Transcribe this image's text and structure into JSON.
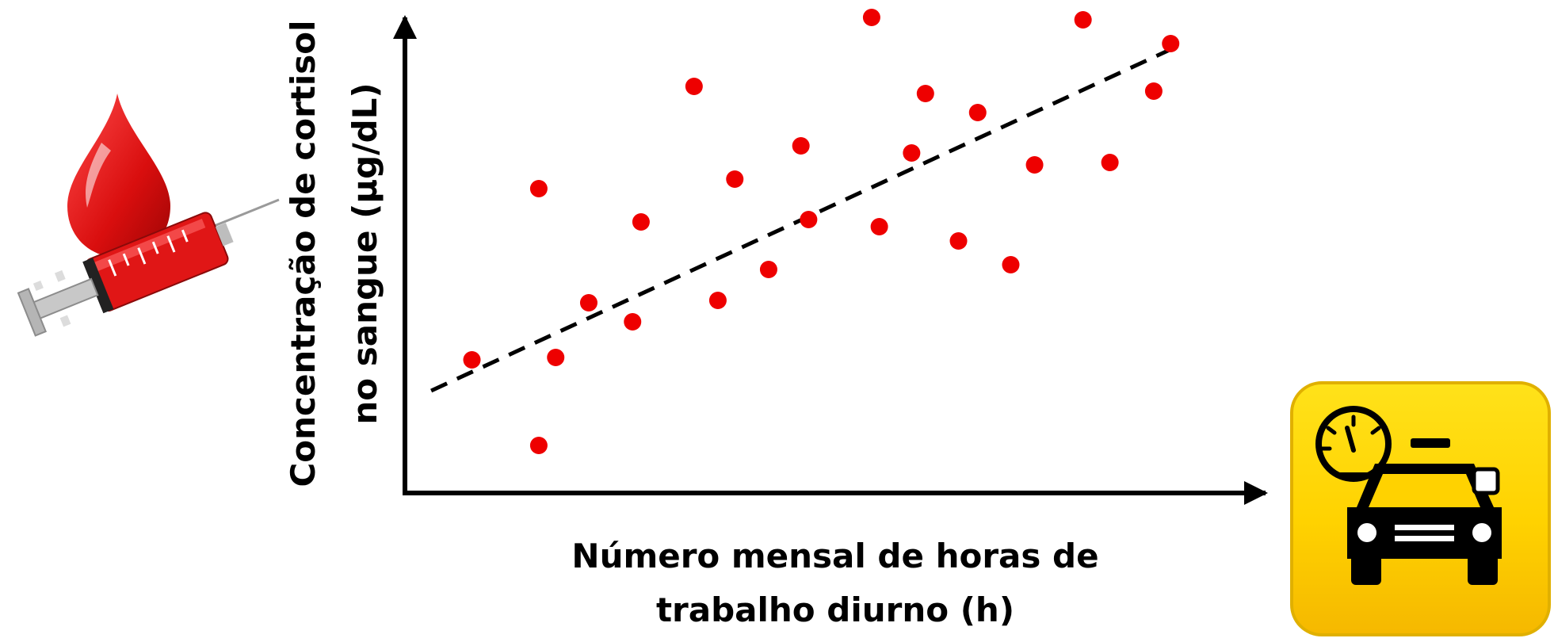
{
  "chart_data": {
    "type": "scatter",
    "xlabel_line1": "Número mensal de horas de",
    "xlabel_line2": "trabalho diurno (h)",
    "ylabel_line1": "Concentração de cortisol",
    "ylabel_line2": "no sangue (µg/dL)",
    "grid": false,
    "legend": "none",
    "xlim": [
      0,
      100
    ],
    "ylim": [
      0,
      100
    ],
    "points": [
      {
        "x": 8.3,
        "y": 26.0
      },
      {
        "x": 17.0,
        "y": 8.0
      },
      {
        "x": 17.0,
        "y": 62.0
      },
      {
        "x": 19.2,
        "y": 26.5
      },
      {
        "x": 23.5,
        "y": 38.0
      },
      {
        "x": 30.3,
        "y": 55.0
      },
      {
        "x": 29.2,
        "y": 34.0
      },
      {
        "x": 37.2,
        "y": 83.5
      },
      {
        "x": 40.3,
        "y": 38.5
      },
      {
        "x": 42.5,
        "y": 64.0
      },
      {
        "x": 46.9,
        "y": 45.0
      },
      {
        "x": 51.1,
        "y": 71.0
      },
      {
        "x": 52.1,
        "y": 55.5
      },
      {
        "x": 60.3,
        "y": 98.0
      },
      {
        "x": 61.3,
        "y": 54.0
      },
      {
        "x": 65.5,
        "y": 69.5
      },
      {
        "x": 67.3,
        "y": 82.0
      },
      {
        "x": 71.6,
        "y": 51.0
      },
      {
        "x": 74.1,
        "y": 78.0
      },
      {
        "x": 78.4,
        "y": 46.0
      },
      {
        "x": 81.5,
        "y": 67.0
      },
      {
        "x": 87.8,
        "y": 97.5
      },
      {
        "x": 91.3,
        "y": 67.5
      },
      {
        "x": 97.0,
        "y": 82.5
      },
      {
        "x": 99.2,
        "y": 92.5
      }
    ],
    "trendline": {
      "style": "dashed",
      "x": [
        3,
        99.5
      ],
      "y": [
        19.5,
        91.5
      ]
    },
    "colors": {
      "points": "#ee0000",
      "axes": "#000000",
      "trendline": "#000000"
    }
  },
  "icons": {
    "left": "blood-drop-syringe-icon",
    "right": "taxi-speedometer-icon",
    "right_bg": "#ffd200"
  }
}
